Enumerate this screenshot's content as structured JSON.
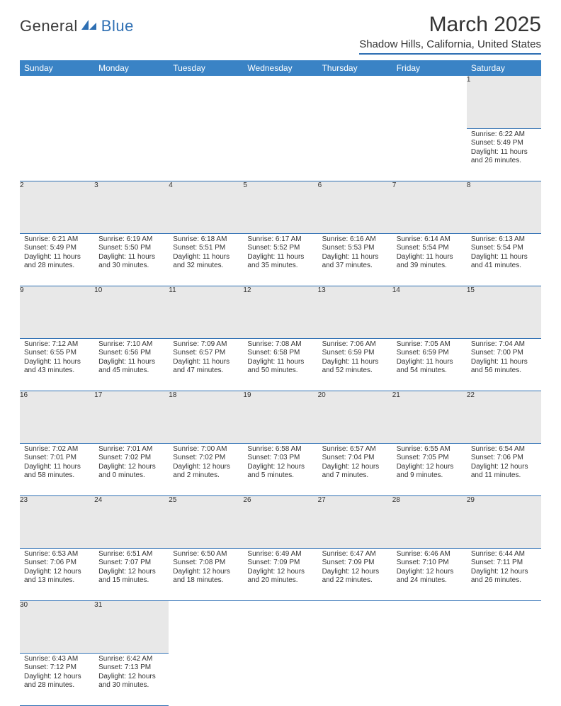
{
  "logo": {
    "part1": "General",
    "part2": "Blue"
  },
  "title": "March 2025",
  "location": "Shadow Hills, California, United States",
  "colors": {
    "accent": "#2e6fb3",
    "header_bg": "#3a83c5",
    "daynum_bg": "#e8e8e8",
    "text": "#333333"
  },
  "weekdays": [
    "Sunday",
    "Monday",
    "Tuesday",
    "Wednesday",
    "Thursday",
    "Friday",
    "Saturday"
  ],
  "weeks": [
    [
      null,
      null,
      null,
      null,
      null,
      null,
      {
        "n": "1",
        "sr": "Sunrise: 6:22 AM",
        "ss": "Sunset: 5:49 PM",
        "dl": "Daylight: 11 hours and 26 minutes."
      }
    ],
    [
      {
        "n": "2",
        "sr": "Sunrise: 6:21 AM",
        "ss": "Sunset: 5:49 PM",
        "dl": "Daylight: 11 hours and 28 minutes."
      },
      {
        "n": "3",
        "sr": "Sunrise: 6:19 AM",
        "ss": "Sunset: 5:50 PM",
        "dl": "Daylight: 11 hours and 30 minutes."
      },
      {
        "n": "4",
        "sr": "Sunrise: 6:18 AM",
        "ss": "Sunset: 5:51 PM",
        "dl": "Daylight: 11 hours and 32 minutes."
      },
      {
        "n": "5",
        "sr": "Sunrise: 6:17 AM",
        "ss": "Sunset: 5:52 PM",
        "dl": "Daylight: 11 hours and 35 minutes."
      },
      {
        "n": "6",
        "sr": "Sunrise: 6:16 AM",
        "ss": "Sunset: 5:53 PM",
        "dl": "Daylight: 11 hours and 37 minutes."
      },
      {
        "n": "7",
        "sr": "Sunrise: 6:14 AM",
        "ss": "Sunset: 5:54 PM",
        "dl": "Daylight: 11 hours and 39 minutes."
      },
      {
        "n": "8",
        "sr": "Sunrise: 6:13 AM",
        "ss": "Sunset: 5:54 PM",
        "dl": "Daylight: 11 hours and 41 minutes."
      }
    ],
    [
      {
        "n": "9",
        "sr": "Sunrise: 7:12 AM",
        "ss": "Sunset: 6:55 PM",
        "dl": "Daylight: 11 hours and 43 minutes."
      },
      {
        "n": "10",
        "sr": "Sunrise: 7:10 AM",
        "ss": "Sunset: 6:56 PM",
        "dl": "Daylight: 11 hours and 45 minutes."
      },
      {
        "n": "11",
        "sr": "Sunrise: 7:09 AM",
        "ss": "Sunset: 6:57 PM",
        "dl": "Daylight: 11 hours and 47 minutes."
      },
      {
        "n": "12",
        "sr": "Sunrise: 7:08 AM",
        "ss": "Sunset: 6:58 PM",
        "dl": "Daylight: 11 hours and 50 minutes."
      },
      {
        "n": "13",
        "sr": "Sunrise: 7:06 AM",
        "ss": "Sunset: 6:59 PM",
        "dl": "Daylight: 11 hours and 52 minutes."
      },
      {
        "n": "14",
        "sr": "Sunrise: 7:05 AM",
        "ss": "Sunset: 6:59 PM",
        "dl": "Daylight: 11 hours and 54 minutes."
      },
      {
        "n": "15",
        "sr": "Sunrise: 7:04 AM",
        "ss": "Sunset: 7:00 PM",
        "dl": "Daylight: 11 hours and 56 minutes."
      }
    ],
    [
      {
        "n": "16",
        "sr": "Sunrise: 7:02 AM",
        "ss": "Sunset: 7:01 PM",
        "dl": "Daylight: 11 hours and 58 minutes."
      },
      {
        "n": "17",
        "sr": "Sunrise: 7:01 AM",
        "ss": "Sunset: 7:02 PM",
        "dl": "Daylight: 12 hours and 0 minutes."
      },
      {
        "n": "18",
        "sr": "Sunrise: 7:00 AM",
        "ss": "Sunset: 7:02 PM",
        "dl": "Daylight: 12 hours and 2 minutes."
      },
      {
        "n": "19",
        "sr": "Sunrise: 6:58 AM",
        "ss": "Sunset: 7:03 PM",
        "dl": "Daylight: 12 hours and 5 minutes."
      },
      {
        "n": "20",
        "sr": "Sunrise: 6:57 AM",
        "ss": "Sunset: 7:04 PM",
        "dl": "Daylight: 12 hours and 7 minutes."
      },
      {
        "n": "21",
        "sr": "Sunrise: 6:55 AM",
        "ss": "Sunset: 7:05 PM",
        "dl": "Daylight: 12 hours and 9 minutes."
      },
      {
        "n": "22",
        "sr": "Sunrise: 6:54 AM",
        "ss": "Sunset: 7:06 PM",
        "dl": "Daylight: 12 hours and 11 minutes."
      }
    ],
    [
      {
        "n": "23",
        "sr": "Sunrise: 6:53 AM",
        "ss": "Sunset: 7:06 PM",
        "dl": "Daylight: 12 hours and 13 minutes."
      },
      {
        "n": "24",
        "sr": "Sunrise: 6:51 AM",
        "ss": "Sunset: 7:07 PM",
        "dl": "Daylight: 12 hours and 15 minutes."
      },
      {
        "n": "25",
        "sr": "Sunrise: 6:50 AM",
        "ss": "Sunset: 7:08 PM",
        "dl": "Daylight: 12 hours and 18 minutes."
      },
      {
        "n": "26",
        "sr": "Sunrise: 6:49 AM",
        "ss": "Sunset: 7:09 PM",
        "dl": "Daylight: 12 hours and 20 minutes."
      },
      {
        "n": "27",
        "sr": "Sunrise: 6:47 AM",
        "ss": "Sunset: 7:09 PM",
        "dl": "Daylight: 12 hours and 22 minutes."
      },
      {
        "n": "28",
        "sr": "Sunrise: 6:46 AM",
        "ss": "Sunset: 7:10 PM",
        "dl": "Daylight: 12 hours and 24 minutes."
      },
      {
        "n": "29",
        "sr": "Sunrise: 6:44 AM",
        "ss": "Sunset: 7:11 PM",
        "dl": "Daylight: 12 hours and 26 minutes."
      }
    ],
    [
      {
        "n": "30",
        "sr": "Sunrise: 6:43 AM",
        "ss": "Sunset: 7:12 PM",
        "dl": "Daylight: 12 hours and 28 minutes."
      },
      {
        "n": "31",
        "sr": "Sunrise: 6:42 AM",
        "ss": "Sunset: 7:13 PM",
        "dl": "Daylight: 12 hours and 30 minutes."
      },
      null,
      null,
      null,
      null,
      null
    ]
  ]
}
